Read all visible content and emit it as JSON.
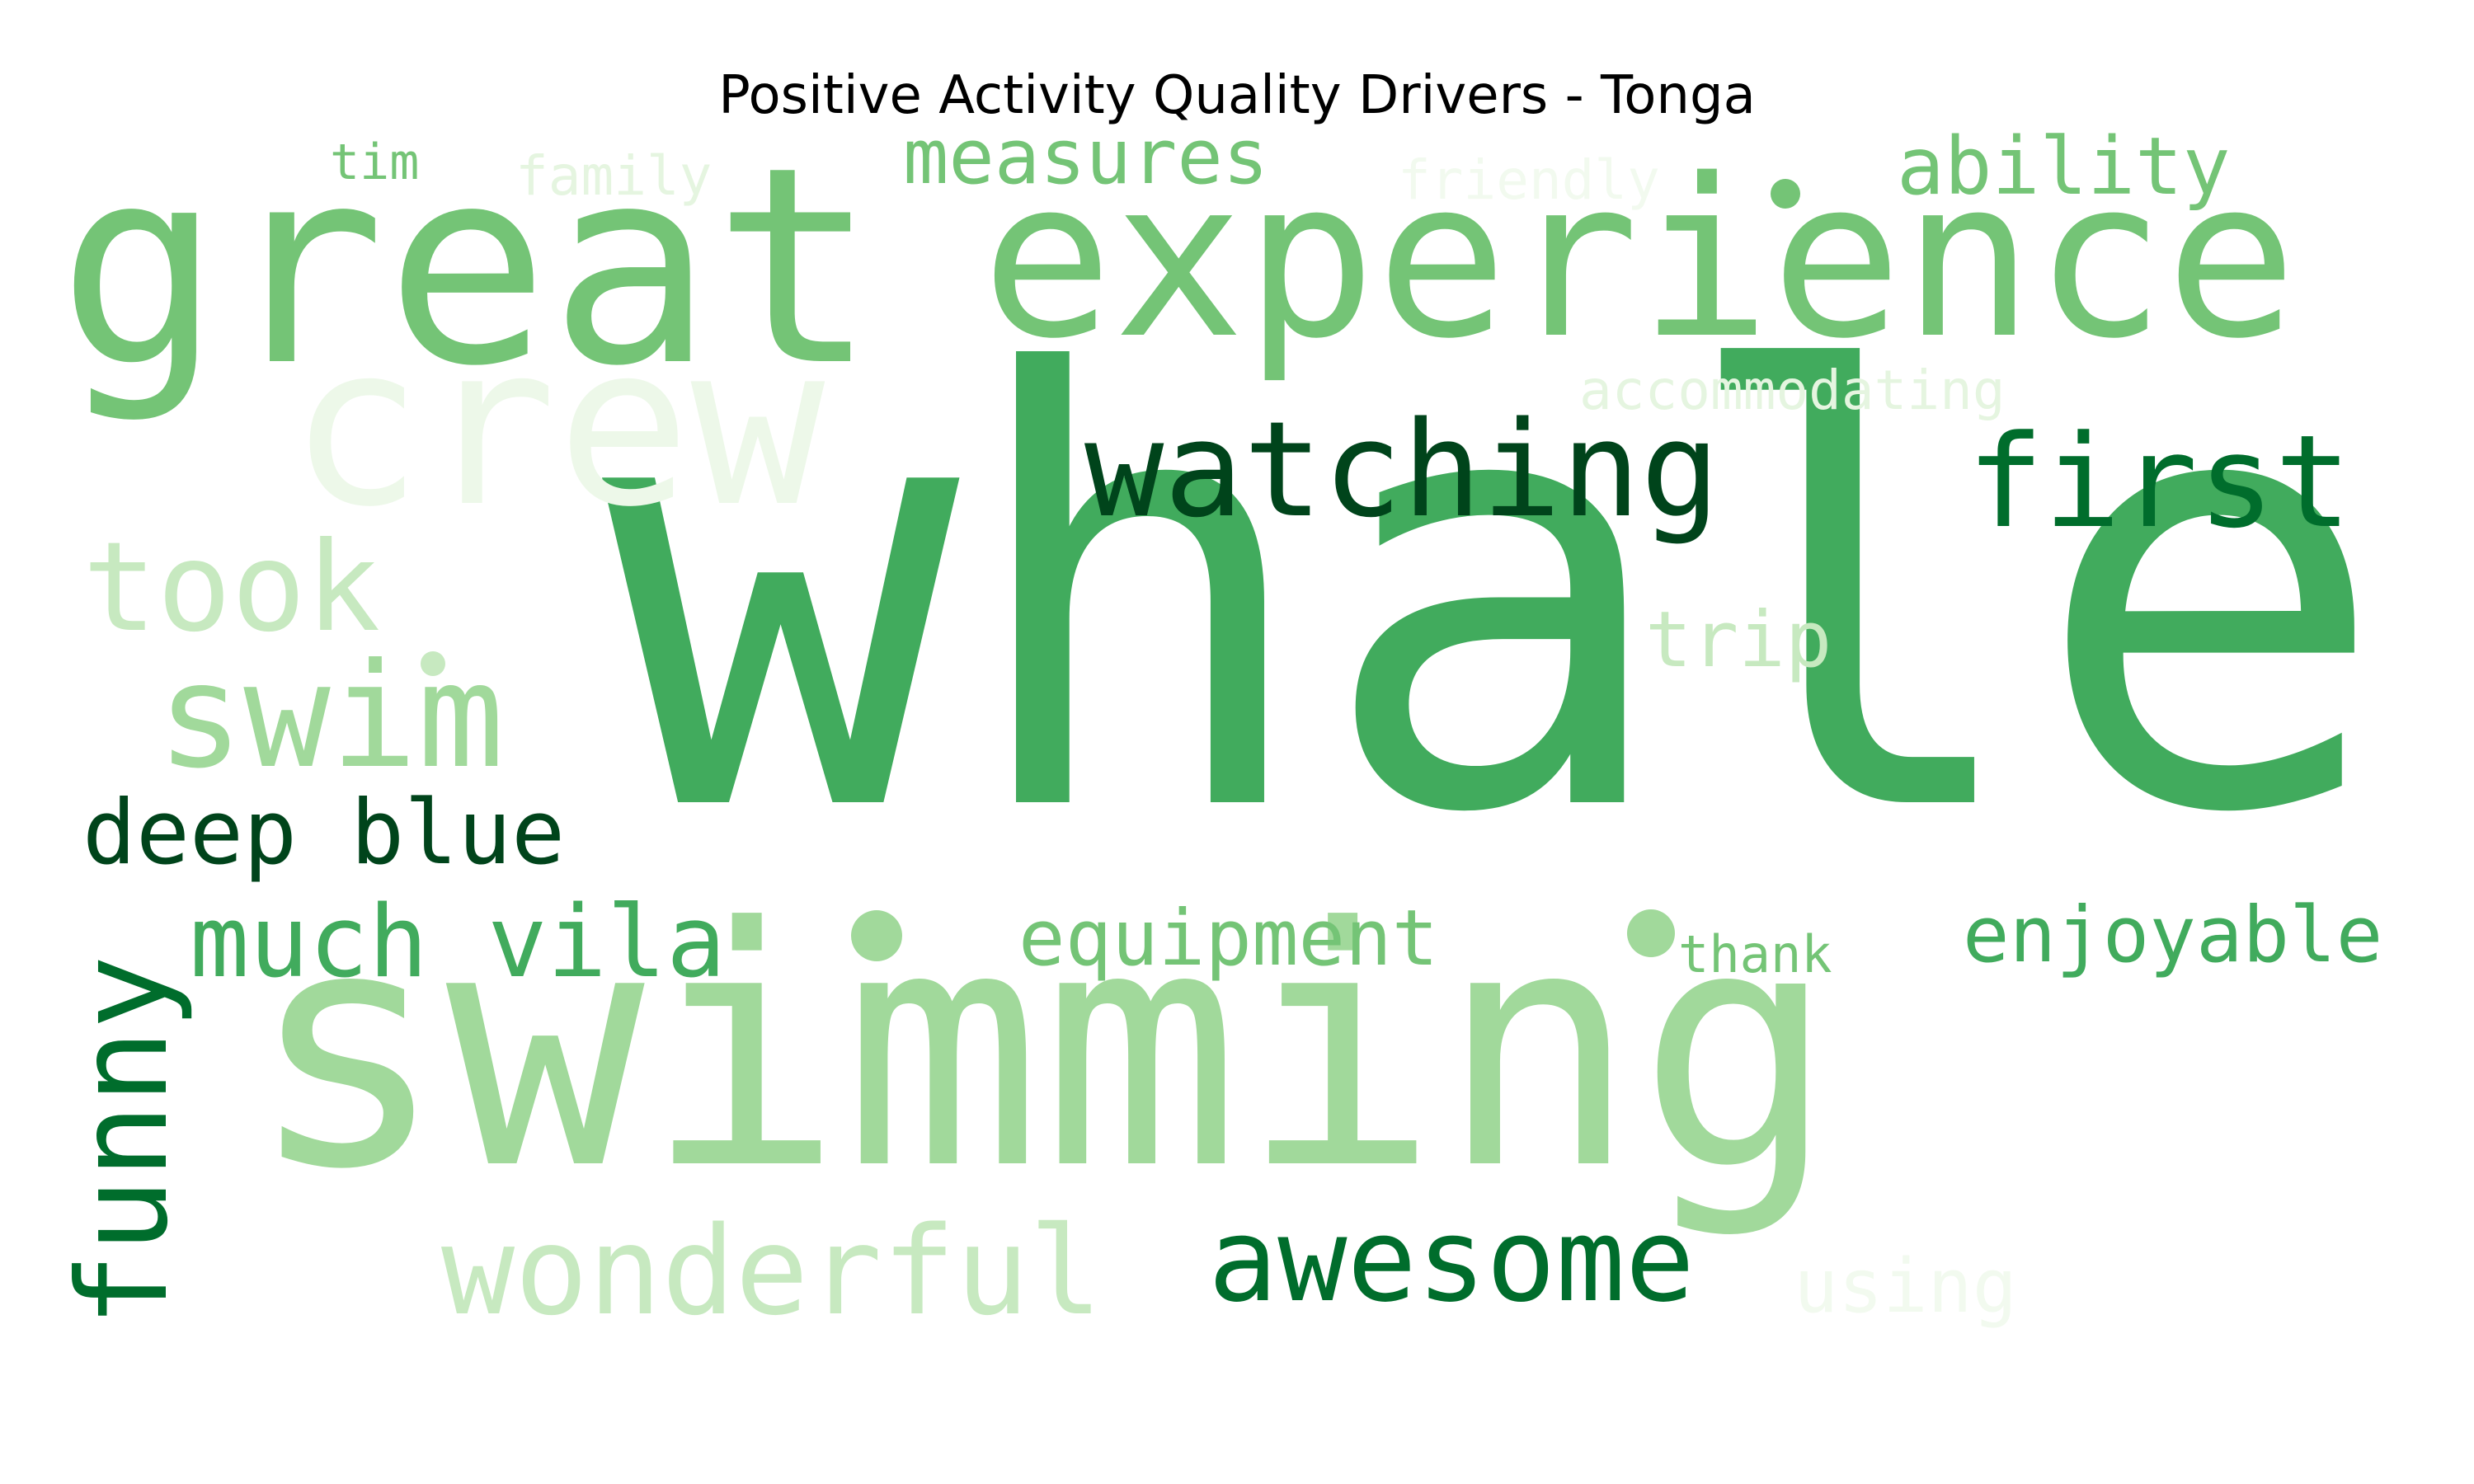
{
  "title": "Positive Activity Quality Drivers - Tonga",
  "colors": {
    "dark": "#00441b",
    "deep": "#006d2c",
    "green": "#41ab5d",
    "mid": "#74c476",
    "light": "#a1d99b",
    "pale": "#c7e9c0",
    "faint": "#e5f5e0",
    "bg": "#ffffff"
  },
  "words": [
    {
      "id": "whale",
      "text": "whale",
      "color": "#41ab5d"
    },
    {
      "id": "swimming",
      "text": "swimming",
      "color": "#a1d99b"
    },
    {
      "id": "great",
      "text": "great",
      "color": "#74c476"
    },
    {
      "id": "experience",
      "text": "experience",
      "color": "#74c476"
    },
    {
      "id": "crew",
      "text": "crew",
      "color": "#edf8e9"
    },
    {
      "id": "watching",
      "text": "watching",
      "color": "#00441b"
    },
    {
      "id": "first",
      "text": "first",
      "color": "#006d2c"
    },
    {
      "id": "took",
      "text": "took",
      "color": "#c7e9c0"
    },
    {
      "id": "swim",
      "text": "swim",
      "color": "#a1d99b"
    },
    {
      "id": "deep-blue",
      "text": "deep blue",
      "color": "#00441b"
    },
    {
      "id": "much-vila",
      "text": "much vila",
      "color": "#41ab5d"
    },
    {
      "id": "funny",
      "text": "funny",
      "color": "#006d2c"
    },
    {
      "id": "equipment",
      "text": "equipment",
      "color": "#74c476"
    },
    {
      "id": "enjoyable",
      "text": "enjoyable",
      "color": "#41ab5d"
    },
    {
      "id": "thank",
      "text": "thank",
      "color": "#74c476"
    },
    {
      "id": "wonderful",
      "text": "wonderful",
      "color": "#c7e9c0"
    },
    {
      "id": "awesome",
      "text": "awesome",
      "color": "#006d2c"
    },
    {
      "id": "using",
      "text": "using",
      "color": "#f2faef"
    },
    {
      "id": "trip",
      "text": "trip",
      "color": "#c7e9c0"
    },
    {
      "id": "accommodating",
      "text": "accommodating",
      "color": "#e5f5e0"
    },
    {
      "id": "measures",
      "text": "measures",
      "color": "#74c476"
    },
    {
      "id": "ability",
      "text": "ability",
      "color": "#74c476"
    },
    {
      "id": "tim",
      "text": "tim",
      "color": "#74c476"
    },
    {
      "id": "family",
      "text": "family",
      "color": "#e5f5e0"
    },
    {
      "id": "friendly",
      "text": "friendly",
      "color": "#f2faef"
    }
  ],
  "dots": [
    {
      "id": "dot-ability",
      "color": "#74c476"
    },
    {
      "id": "dot-took",
      "color": "#c7e9c0"
    },
    {
      "id": "dot-vila",
      "color": "#a1d99b"
    },
    {
      "id": "dot-thank",
      "color": "#a1d99b"
    }
  ]
}
